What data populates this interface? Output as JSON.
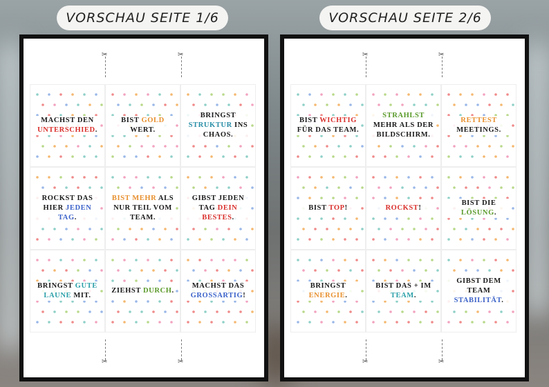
{
  "pages": [
    {
      "title": "VORSCHAU SEITE 1/6",
      "cards": [
        [
          {
            "text": "MACHST DEN "
          },
          {
            "text": "UNTERSCHIED",
            "color": "#d9302c"
          },
          {
            "text": "."
          }
        ],
        [
          {
            "text": "BIST "
          },
          {
            "text": "GOLD",
            "color": "#e8912f"
          },
          {
            "text": " WERT."
          }
        ],
        [
          {
            "text": "BRINGST "
          },
          {
            "text": "STRUKTUR",
            "color": "#2a8fa8"
          },
          {
            "text": " INS CHAOS."
          }
        ],
        [
          {
            "text": "ROCKST DAS HIER "
          },
          {
            "text": "JEDEN TAG",
            "color": "#3c63c9"
          },
          {
            "text": "."
          }
        ],
        [
          {
            "text": "BIST MEHR",
            "color": "#e8912f"
          },
          {
            "text": " ALS NUR TEIL VOM TEAM."
          }
        ],
        [
          {
            "text": "GIBST JEDEN TAG "
          },
          {
            "text": "DEIN BESTES",
            "color": "#d9302c"
          },
          {
            "text": "."
          }
        ],
        [
          {
            "text": "BRINGST "
          },
          {
            "text": "GUTE LAUNE",
            "color": "#2a9fa8"
          },
          {
            "text": " MIT."
          }
        ],
        [
          {
            "text": "ZIEHST "
          },
          {
            "text": "DURCH",
            "color": "#5a9a2a"
          },
          {
            "text": "."
          }
        ],
        [
          {
            "text": "MACHST DAS "
          },
          {
            "text": "GROSSARTIG",
            "color": "#3c63c9"
          },
          {
            "text": "!"
          }
        ]
      ]
    },
    {
      "title": "VORSCHAU SEITE 2/6",
      "cards": [
        [
          {
            "text": "BIST "
          },
          {
            "text": "WICHTIG",
            "color": "#d9302c"
          },
          {
            "text": " FÜR DAS TEAM."
          }
        ],
        [
          {
            "text": "STRAHLST",
            "color": "#5a9a2a"
          },
          {
            "text": " MEHR ALS DER BILDSCHIRM."
          }
        ],
        [
          {
            "text": "RETTEST",
            "color": "#e8912f"
          },
          {
            "text": " MEETINGS."
          }
        ],
        [
          {
            "text": "BIST "
          },
          {
            "text": "TOP",
            "color": "#d9302c"
          },
          {
            "text": "!"
          }
        ],
        [
          {
            "text": "ROCKST",
            "color": "#d9302c"
          },
          {
            "text": "!"
          }
        ],
        [
          {
            "text": "BIST DIE "
          },
          {
            "text": "LÖSUNG",
            "color": "#5a9a2a"
          },
          {
            "text": "."
          }
        ],
        [
          {
            "text": "BRINGST "
          },
          {
            "text": "ENERGIE",
            "color": "#e8912f"
          },
          {
            "text": "."
          }
        ],
        [
          {
            "text": "BIST DAS + IM "
          },
          {
            "text": "TEAM",
            "color": "#2a9fa8"
          },
          {
            "text": "."
          }
        ],
        [
          {
            "text": "GIBST DEM TEAM "
          },
          {
            "text": "STABILITÄT",
            "color": "#3c63c9"
          },
          {
            "text": "."
          }
        ]
      ]
    }
  ]
}
